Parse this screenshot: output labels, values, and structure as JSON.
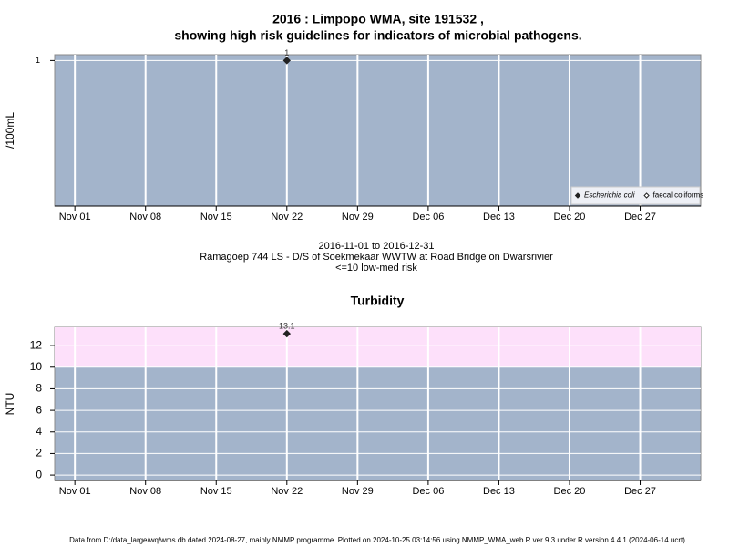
{
  "title": [
    "2016 : Limpopo WMA, site 191532 ,",
    "showing high risk guidelines for indicators of microbial pathogens."
  ],
  "subtitle": [
    "2016-11-01 to 2016-12-31",
    "Ramagoep 744 LS - D/S of Soekmekaar WWTW at Road Bridge on Dwarsrivier",
    "<=10 low-med risk"
  ],
  "footer": "Data from D:/data_large/wq/wms.db dated 2024-08-27, mainly NMMP programme. Plotted on 2024-10-25 03:14:56 using NMMP_WMA_web.R ver 9.3 under R version 4.4.1 (2024-06-14 ucrt)",
  "chart_data": [
    {
      "type": "scatter",
      "ylabel": "/100mL",
      "background": "#a3b4cb",
      "grid": true,
      "legend": "bottom-right",
      "xlim": [
        "2016-10-30",
        "2017-01-02"
      ],
      "xticks": [
        {
          "value": "2016-11-01",
          "label": "Nov 01"
        },
        {
          "value": "2016-11-08",
          "label": "Nov 08"
        },
        {
          "value": "2016-11-15",
          "label": "Nov 15"
        },
        {
          "value": "2016-11-22",
          "label": "Nov 22"
        },
        {
          "value": "2016-11-29",
          "label": "Nov 29"
        },
        {
          "value": "2016-12-06",
          "label": "Dec 06"
        },
        {
          "value": "2016-12-13",
          "label": "Dec 13"
        },
        {
          "value": "2016-12-20",
          "label": "Dec 20"
        },
        {
          "value": "2016-12-27",
          "label": "Dec 27"
        }
      ],
      "ylim": [
        0,
        1.04
      ],
      "yticks": [
        1
      ],
      "series": [
        {
          "name": "Escherichia coli",
          "marker": "filled",
          "color": "#222222",
          "x": [
            "2016-11-22"
          ],
          "values": [
            1
          ],
          "value_labels": [
            "1"
          ]
        },
        {
          "name": "faecal coliforms",
          "marker": "open",
          "color": "#222222",
          "x": [],
          "values": []
        }
      ]
    },
    {
      "type": "scatter",
      "title": "Turbidity",
      "ylabel": "NTU",
      "background": "#a3b4cb",
      "grid": true,
      "threshold": 10,
      "threshold_color": "#fde0fa",
      "xlim": [
        "2016-10-30",
        "2017-01-02"
      ],
      "xticks": [
        {
          "value": "2016-11-01",
          "label": "Nov 01"
        },
        {
          "value": "2016-11-08",
          "label": "Nov 08"
        },
        {
          "value": "2016-11-15",
          "label": "Nov 15"
        },
        {
          "value": "2016-11-22",
          "label": "Nov 22"
        },
        {
          "value": "2016-11-29",
          "label": "Nov 29"
        },
        {
          "value": "2016-12-06",
          "label": "Dec 06"
        },
        {
          "value": "2016-12-13",
          "label": "Dec 13"
        },
        {
          "value": "2016-12-20",
          "label": "Dec 20"
        },
        {
          "value": "2016-12-27",
          "label": "Dec 27"
        }
      ],
      "ylim": [
        -0.5,
        13.7
      ],
      "yticks": [
        0,
        2,
        4,
        6,
        8,
        10,
        12
      ],
      "series": [
        {
          "name": "Turbidity",
          "marker": "filled",
          "color": "#222222",
          "x": [
            "2016-11-22"
          ],
          "values": [
            13.1
          ]
        }
      ]
    }
  ]
}
